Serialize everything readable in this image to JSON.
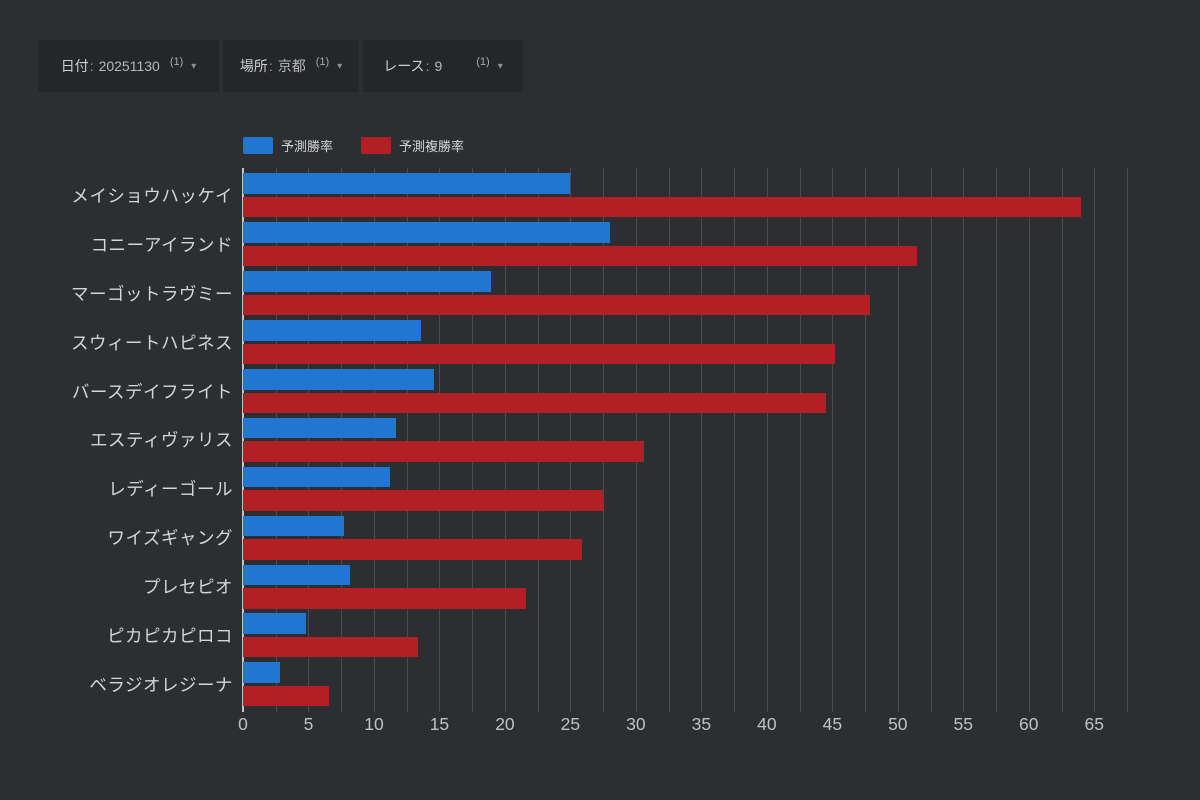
{
  "filters": [
    {
      "label": "日付",
      "value": "20251130",
      "count": "(1)",
      "arrow": "▾"
    },
    {
      "label": "場所",
      "value": "京都",
      "count": "(1)",
      "arrow": "▾"
    },
    {
      "label": "レース",
      "value": "9",
      "count": "(1)",
      "arrow": "▾"
    }
  ],
  "legend": [
    {
      "label": "予測勝率",
      "color": "#2176d2"
    },
    {
      "label": "予測複勝率",
      "color": "#b22025"
    }
  ],
  "colors": {
    "background": "#2d2e32",
    "filter_button": "#252629",
    "win_bar": "#2176d2",
    "place_bar": "#b22025",
    "gridline": "rgba(255,255,255,0.15)",
    "axis_line": "#c3c4c6",
    "text": "#d4d5d7"
  },
  "chart_data": {
    "type": "bar",
    "orientation": "horizontal",
    "title": "",
    "xlabel": "",
    "ylabel": "",
    "categories": [
      "メイショウハッケイ",
      "コニーアイランド",
      "マーゴットラヴミー",
      "スウィートハピネス",
      "バースデイフライト",
      "エスティヴァリス",
      "レディーゴール",
      "ワイズギャング",
      "プレセピオ",
      "ピカピカピロコ",
      "ベラジオレジーナ"
    ],
    "series": [
      {
        "name": "予測勝率",
        "color": "#2176d2",
        "values": [
          25.0,
          28.0,
          18.9,
          13.6,
          14.6,
          11.7,
          11.2,
          7.7,
          8.2,
          4.8,
          2.8
        ]
      },
      {
        "name": "予測複勝率",
        "color": "#b22025",
        "values": [
          64.0,
          51.5,
          47.9,
          45.2,
          44.5,
          30.6,
          27.5,
          25.9,
          21.6,
          13.4,
          6.6
        ]
      }
    ],
    "x_ticks": [
      0,
      5,
      10,
      15,
      20,
      25,
      30,
      35,
      40,
      45,
      50,
      55,
      60,
      65
    ],
    "xlim": [
      0,
      67.5
    ],
    "gridline_interval": 2.5,
    "grid": true,
    "legend_position": "top"
  }
}
